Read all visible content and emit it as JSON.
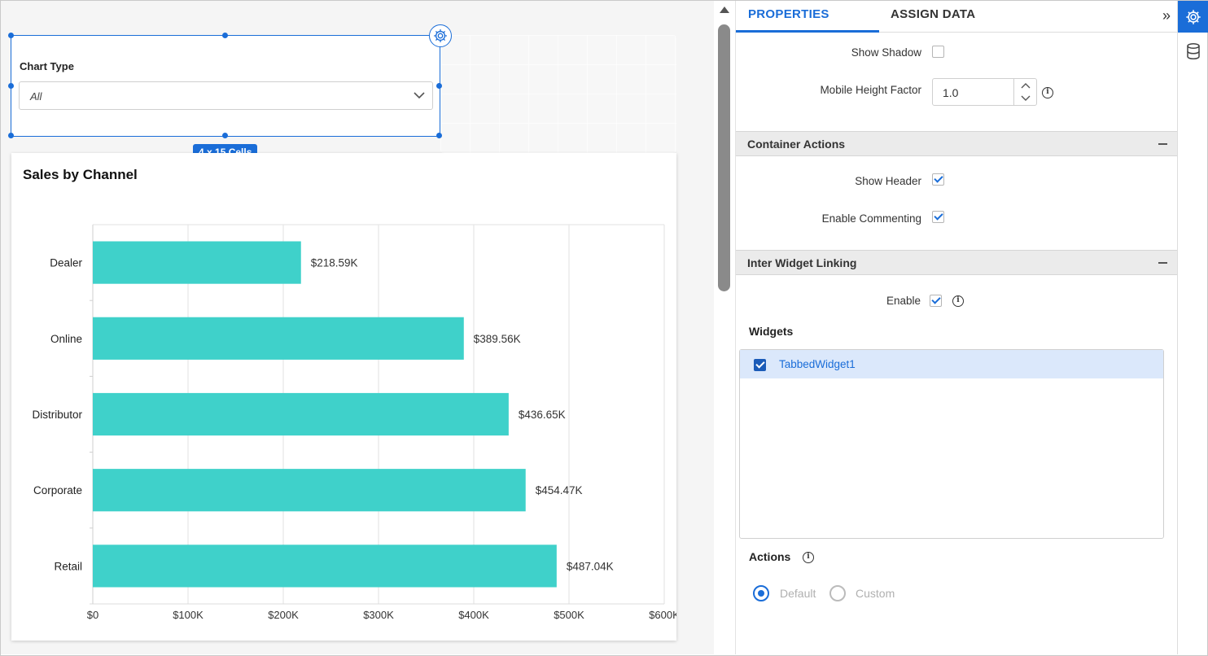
{
  "canvas": {
    "filter_widget": {
      "label": "Chart Type",
      "selected": "All",
      "size_badge": "4 x 15 Cells"
    },
    "chart_widget": {
      "title": "Sales by Channel"
    }
  },
  "chart_data": {
    "type": "bar",
    "orientation": "horizontal",
    "categories": [
      "Dealer",
      "Online",
      "Distributor",
      "Corporate",
      "Retail"
    ],
    "values": [
      218590,
      389560,
      436650,
      454470,
      487040
    ],
    "data_labels": [
      "$218.59K",
      "$389.56K",
      "$436.65K",
      "$454.47K",
      "$487.04K"
    ],
    "x_ticks": [
      "$0",
      "$100K",
      "$200K",
      "$300K",
      "$400K",
      "$500K",
      "$600K"
    ],
    "xlim": [
      0,
      600000
    ],
    "bar_color": "#3fd1ca",
    "grid": true
  },
  "panel": {
    "tabs": [
      "PROPERTIES",
      "ASSIGN DATA"
    ],
    "active_tab": "PROPERTIES",
    "show_shadow": {
      "label": "Show Shadow",
      "checked": false
    },
    "mobile_height_factor": {
      "label": "Mobile Height Factor",
      "value": "1.0"
    },
    "container_actions": {
      "title": "Container Actions",
      "show_header": {
        "label": "Show Header",
        "checked": true
      },
      "enable_commenting": {
        "label": "Enable Commenting",
        "checked": true
      }
    },
    "inter_widget_linking": {
      "title": "Inter Widget Linking",
      "enable": {
        "label": "Enable",
        "checked": true
      },
      "widgets_title": "Widgets",
      "widgets": [
        {
          "name": "TabbedWidget1",
          "checked": true
        }
      ],
      "actions_title": "Actions",
      "actions_options": [
        "Default",
        "Custom"
      ],
      "actions_selected": "Default"
    }
  },
  "colors": {
    "accent": "#1a6dd8",
    "bar": "#3fd1ca"
  }
}
